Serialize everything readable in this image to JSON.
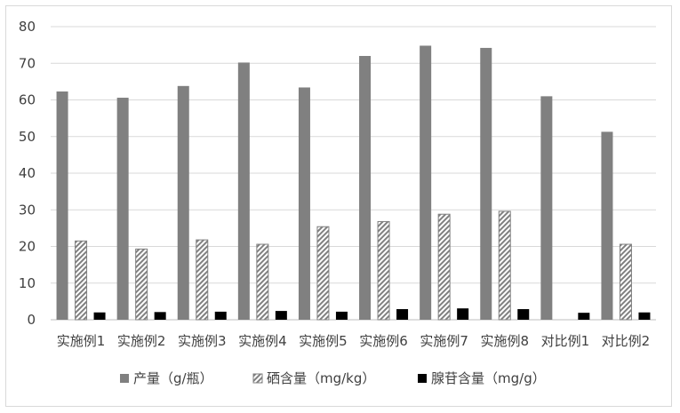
{
  "chart_data": {
    "type": "bar",
    "categories": [
      "实施例1",
      "实施例2",
      "实施例3",
      "实施例4",
      "实施例5",
      "实施例6",
      "实施例7",
      "实施例8",
      "对比例1",
      "对比例2"
    ],
    "series": [
      {
        "name": "产量（g/瓶）",
        "values": [
          62.3,
          60.6,
          63.8,
          70.2,
          63.4,
          72.0,
          74.8,
          74.2,
          61.0,
          51.3
        ],
        "color": "#808080",
        "pattern": "solid"
      },
      {
        "name": "硒含量（mg/kg）",
        "values": [
          21.5,
          19.3,
          21.8,
          20.6,
          25.4,
          26.8,
          28.8,
          29.6,
          0,
          20.6
        ],
        "color": "#808080",
        "pattern": "diagonal-hatch"
      },
      {
        "name": "腺苷含量（mg/g）",
        "values": [
          2.0,
          2.1,
          2.2,
          2.4,
          2.2,
          2.9,
          3.1,
          2.9,
          1.9,
          2.0
        ],
        "color": "#000000",
        "pattern": "solid"
      }
    ],
    "ylim": [
      0,
      80
    ],
    "yticks": [
      0,
      10,
      20,
      30,
      40,
      50,
      60,
      70,
      80
    ],
    "title": "",
    "xlabel": "",
    "ylabel": "",
    "grid": "horizontal",
    "legend": "bottom",
    "gridColor": "#d9d9d9",
    "axisColor": "#bfbfbf"
  }
}
